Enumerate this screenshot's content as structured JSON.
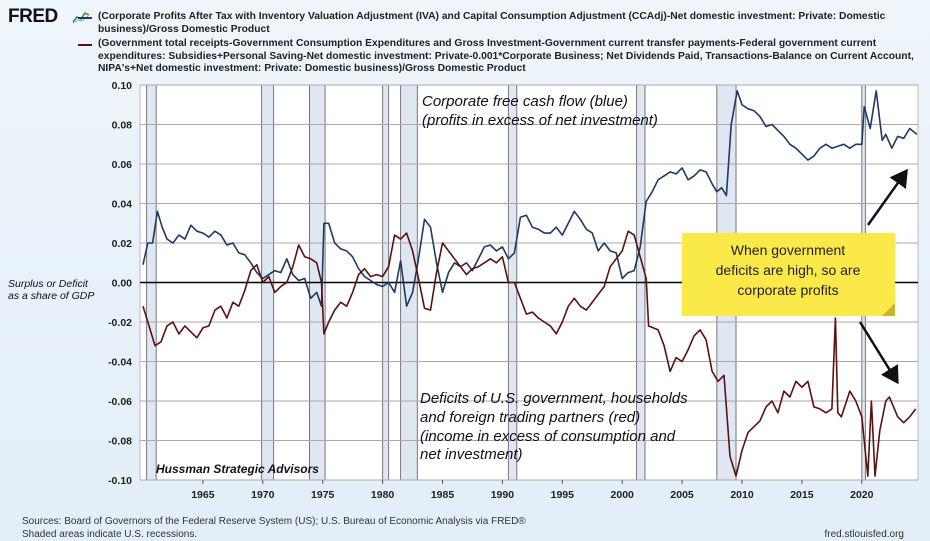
{
  "header": {
    "logo": "FRED",
    "series": [
      {
        "label": "(Corporate Profits After Tax with Inventory Valuation Adjustment (IVA) and Capital Consumption Adjustment (CCAdj)-Net domestic investment: Private: Domestic business)/Gross Domestic Product",
        "color": "#1f3864"
      },
      {
        "label": "(Government total receipts-Government Consumption Expenditures and Gross Investment-Government current transfer payments-Federal government current expenditures: Subsidies+Personal Saving-Net domestic investment: Private-0.001*Corporate Business; Net Dividends Paid, Transactions-Balance on Current Account, NIPA's+Net domestic investment: Private: Domestic business)/Gross Domestic Product",
        "color": "#5c1010"
      }
    ]
  },
  "footer": {
    "sources": "Sources: Board of Governors of the Federal Reserve System (US); U.S. Bureau of Economic Analysis via FRED®",
    "shaded_note": "Shaded areas indicate U.S. recessions.",
    "site": "fred.stlouisfed.org"
  },
  "chart_data": {
    "type": "line",
    "ylabel": [
      "Surplus or Deficit",
      "as a share of GDP"
    ],
    "xlim": [
      1960,
      2024.7
    ],
    "ylim": [
      -0.1,
      0.1
    ],
    "x_ticks": [
      "1965",
      "1970",
      "1975",
      "1980",
      "1985",
      "1990",
      "1995",
      "2000",
      "2005",
      "2010",
      "2015",
      "2020"
    ],
    "y_ticks": [
      "0.10",
      "0.08",
      "0.06",
      "0.04",
      "0.02",
      "0.00",
      "-0.02",
      "-0.04",
      "-0.06",
      "-0.08",
      "-0.10"
    ],
    "grid": "horizontal",
    "recessions": [
      [
        1960.3,
        1961.1
      ],
      [
        1969.9,
        1970.9
      ],
      [
        1973.9,
        1975.2
      ],
      [
        1980.0,
        1980.5
      ],
      [
        1981.5,
        1982.9
      ],
      [
        1990.5,
        1991.2
      ],
      [
        2001.2,
        2001.9
      ],
      [
        2007.9,
        2009.5
      ],
      [
        2020.0,
        2020.3
      ]
    ],
    "annotations": {
      "blue": [
        "Corporate free cash flow (blue)",
        "(profits in excess of net investment)"
      ],
      "red": [
        "Deficits of U.S. government, households",
        "and foreign trading partners (red)",
        "(income in excess of consumption and",
        "net investment)"
      ],
      "note": [
        "When government",
        "deficits are high, so are",
        "corporate profits"
      ],
      "credit": "Hussman Strategic Advisors"
    },
    "note_color": "#fbe94a",
    "series": [
      {
        "color": "#1f3864",
        "points": [
          [
            1960,
            0.009
          ],
          [
            1960.4,
            0.02
          ],
          [
            1960.8,
            0.02
          ],
          [
            1961.2,
            0.036
          ],
          [
            1961.6,
            0.028
          ],
          [
            1962,
            0.022
          ],
          [
            1962.5,
            0.02
          ],
          [
            1963,
            0.024
          ],
          [
            1963.5,
            0.022
          ],
          [
            1964,
            0.029
          ],
          [
            1964.5,
            0.026
          ],
          [
            1965,
            0.025
          ],
          [
            1965.5,
            0.023
          ],
          [
            1966,
            0.026
          ],
          [
            1966.5,
            0.024
          ],
          [
            1967,
            0.019
          ],
          [
            1967.5,
            0.02
          ],
          [
            1968,
            0.015
          ],
          [
            1968.5,
            0.014
          ],
          [
            1969,
            0.01
          ],
          [
            1969.5,
            0.005
          ],
          [
            1970,
            0.002
          ],
          [
            1970.5,
            0.004
          ],
          [
            1971,
            0.006
          ],
          [
            1971.5,
            0.005
          ],
          [
            1972,
            0.012
          ],
          [
            1972.5,
            0.004
          ],
          [
            1973,
            0.001
          ],
          [
            1973.5,
            0.002
          ],
          [
            1974,
            -0.008
          ],
          [
            1974.5,
            -0.005
          ],
          [
            1974.9,
            -0.012
          ],
          [
            1975.1,
            0.03
          ],
          [
            1975.5,
            0.03
          ],
          [
            1976,
            0.02
          ],
          [
            1976.5,
            0.017
          ],
          [
            1977,
            0.016
          ],
          [
            1977.5,
            0.013
          ],
          [
            1978,
            0.007
          ],
          [
            1978.5,
            0.003
          ],
          [
            1979,
            0.001
          ],
          [
            1979.5,
            -0.001
          ],
          [
            1980,
            -0.002
          ],
          [
            1980.5,
            0.0
          ],
          [
            1981,
            -0.005
          ],
          [
            1981.5,
            0.011
          ],
          [
            1982,
            -0.012
          ],
          [
            1982.5,
            -0.005
          ],
          [
            1983,
            0.012
          ],
          [
            1983.5,
            0.032
          ],
          [
            1984,
            0.028
          ],
          [
            1984.5,
            0.01
          ],
          [
            1985,
            -0.005
          ],
          [
            1985.5,
            0.005
          ],
          [
            1986,
            0.01
          ],
          [
            1986.5,
            0.008
          ],
          [
            1987,
            0.01
          ],
          [
            1987.5,
            0.006
          ],
          [
            1988,
            0.012
          ],
          [
            1988.5,
            0.018
          ],
          [
            1989,
            0.019
          ],
          [
            1989.5,
            0.016
          ],
          [
            1990,
            0.018
          ],
          [
            1990.5,
            0.012
          ],
          [
            1991,
            0.015
          ],
          [
            1991.5,
            0.033
          ],
          [
            1992,
            0.034
          ],
          [
            1992.5,
            0.028
          ],
          [
            1993,
            0.027
          ],
          [
            1993.5,
            0.025
          ],
          [
            1994,
            0.025
          ],
          [
            1994.5,
            0.028
          ],
          [
            1995,
            0.024
          ],
          [
            1995.5,
            0.03
          ],
          [
            1996,
            0.036
          ],
          [
            1996.5,
            0.032
          ],
          [
            1997,
            0.027
          ],
          [
            1997.5,
            0.025
          ],
          [
            1998,
            0.016
          ],
          [
            1998.5,
            0.02
          ],
          [
            1999,
            0.016
          ],
          [
            1999.5,
            0.015
          ],
          [
            2000,
            0.002
          ],
          [
            2000.5,
            0.005
          ],
          [
            2001,
            0.006
          ],
          [
            2001.5,
            0.018
          ],
          [
            2002,
            0.041
          ],
          [
            2002.5,
            0.046
          ],
          [
            2003,
            0.052
          ],
          [
            2003.5,
            0.054
          ],
          [
            2004,
            0.056
          ],
          [
            2004.5,
            0.055
          ],
          [
            2005,
            0.058
          ],
          [
            2005.5,
            0.052
          ],
          [
            2006,
            0.054
          ],
          [
            2006.5,
            0.057
          ],
          [
            2007,
            0.056
          ],
          [
            2007.5,
            0.05
          ],
          [
            2007.9,
            0.046
          ],
          [
            2008.3,
            0.048
          ],
          [
            2008.7,
            0.044
          ],
          [
            2009.1,
            0.08
          ],
          [
            2009.6,
            0.097
          ],
          [
            2010,
            0.09
          ],
          [
            2010.5,
            0.088
          ],
          [
            2011,
            0.087
          ],
          [
            2011.5,
            0.084
          ],
          [
            2012,
            0.079
          ],
          [
            2012.5,
            0.08
          ],
          [
            2013,
            0.077
          ],
          [
            2013.5,
            0.074
          ],
          [
            2014,
            0.07
          ],
          [
            2014.5,
            0.068
          ],
          [
            2015,
            0.065
          ],
          [
            2015.5,
            0.062
          ],
          [
            2016,
            0.064
          ],
          [
            2016.5,
            0.068
          ],
          [
            2017,
            0.07
          ],
          [
            2017.5,
            0.068
          ],
          [
            2018,
            0.069
          ],
          [
            2018.5,
            0.07
          ],
          [
            2019,
            0.068
          ],
          [
            2019.5,
            0.07
          ],
          [
            2020,
            0.07
          ],
          [
            2020.2,
            0.089
          ],
          [
            2020.7,
            0.078
          ],
          [
            2021.2,
            0.097
          ],
          [
            2021.7,
            0.072
          ],
          [
            2022,
            0.075
          ],
          [
            2022.5,
            0.068
          ],
          [
            2023,
            0.074
          ],
          [
            2023.5,
            0.073
          ],
          [
            2024,
            0.078
          ],
          [
            2024.6,
            0.075
          ]
        ]
      },
      {
        "color": "#5c1010",
        "points": [
          [
            1960,
            -0.012
          ],
          [
            1960.5,
            -0.022
          ],
          [
            1961,
            -0.032
          ],
          [
            1961.5,
            -0.03
          ],
          [
            1962,
            -0.022
          ],
          [
            1962.5,
            -0.02
          ],
          [
            1963,
            -0.026
          ],
          [
            1963.5,
            -0.022
          ],
          [
            1964,
            -0.025
          ],
          [
            1964.5,
            -0.028
          ],
          [
            1965,
            -0.023
          ],
          [
            1965.5,
            -0.022
          ],
          [
            1966,
            -0.014
          ],
          [
            1966.5,
            -0.012
          ],
          [
            1967,
            -0.018
          ],
          [
            1967.5,
            -0.01
          ],
          [
            1968,
            -0.012
          ],
          [
            1968.5,
            -0.004
          ],
          [
            1969,
            0.006
          ],
          [
            1969.5,
            0.009
          ],
          [
            1970,
            0.0
          ],
          [
            1970.5,
            0.003
          ],
          [
            1971,
            -0.005
          ],
          [
            1971.5,
            -0.002
          ],
          [
            1972,
            0.0
          ],
          [
            1972.5,
            0.008
          ],
          [
            1973,
            0.019
          ],
          [
            1973.5,
            0.013
          ],
          [
            1974,
            0.012
          ],
          [
            1974.5,
            0.01
          ],
          [
            1974.9,
            0.0
          ],
          [
            1975.1,
            -0.026
          ],
          [
            1975.5,
            -0.02
          ],
          [
            1976,
            -0.014
          ],
          [
            1976.5,
            -0.01
          ],
          [
            1977,
            -0.012
          ],
          [
            1977.5,
            -0.005
          ],
          [
            1978,
            0.004
          ],
          [
            1978.5,
            0.007
          ],
          [
            1979,
            0.003
          ],
          [
            1979.5,
            0.004
          ],
          [
            1980,
            0.003
          ],
          [
            1980.5,
            0.008
          ],
          [
            1981,
            0.024
          ],
          [
            1981.5,
            0.022
          ],
          [
            1982,
            0.025
          ],
          [
            1982.5,
            0.016
          ],
          [
            1983,
            0.002
          ],
          [
            1983.5,
            -0.013
          ],
          [
            1984,
            -0.014
          ],
          [
            1984.5,
            0.005
          ],
          [
            1985,
            0.02
          ],
          [
            1985.5,
            0.016
          ],
          [
            1986,
            0.012
          ],
          [
            1986.5,
            0.008
          ],
          [
            1987,
            0.004
          ],
          [
            1987.5,
            0.007
          ],
          [
            1988,
            0.008
          ],
          [
            1988.5,
            0.01
          ],
          [
            1989,
            0.012
          ],
          [
            1989.5,
            0.01
          ],
          [
            1990,
            0.013
          ],
          [
            1990.5,
            0.0
          ],
          [
            1991,
            0.0
          ],
          [
            1991.5,
            -0.008
          ],
          [
            1992,
            -0.016
          ],
          [
            1992.5,
            -0.015
          ],
          [
            1993,
            -0.018
          ],
          [
            1993.5,
            -0.02
          ],
          [
            1994,
            -0.022
          ],
          [
            1994.5,
            -0.026
          ],
          [
            1995,
            -0.02
          ],
          [
            1995.5,
            -0.012
          ],
          [
            1996,
            -0.008
          ],
          [
            1996.5,
            -0.012
          ],
          [
            1997,
            -0.014
          ],
          [
            1997.5,
            -0.01
          ],
          [
            1998,
            -0.006
          ],
          [
            1998.5,
            -0.002
          ],
          [
            1999,
            0.008
          ],
          [
            1999.5,
            0.012
          ],
          [
            2000,
            0.016
          ],
          [
            2000.5,
            0.026
          ],
          [
            2001,
            0.024
          ],
          [
            2001.5,
            0.013
          ],
          [
            2002,
            0.002
          ],
          [
            2002.2,
            -0.022
          ],
          [
            2003,
            -0.024
          ],
          [
            2003.5,
            -0.032
          ],
          [
            2004,
            -0.045
          ],
          [
            2004.5,
            -0.038
          ],
          [
            2005,
            -0.04
          ],
          [
            2005.5,
            -0.034
          ],
          [
            2006,
            -0.027
          ],
          [
            2006.5,
            -0.024
          ],
          [
            2007,
            -0.029
          ],
          [
            2007.5,
            -0.045
          ],
          [
            2008,
            -0.05
          ],
          [
            2008.5,
            -0.047
          ],
          [
            2009,
            -0.088
          ],
          [
            2009.5,
            -0.098
          ],
          [
            2010,
            -0.085
          ],
          [
            2010.5,
            -0.076
          ],
          [
            2011,
            -0.073
          ],
          [
            2011.5,
            -0.07
          ],
          [
            2012,
            -0.063
          ],
          [
            2012.5,
            -0.06
          ],
          [
            2013,
            -0.066
          ],
          [
            2013.5,
            -0.055
          ],
          [
            2014,
            -0.058
          ],
          [
            2014.5,
            -0.05
          ],
          [
            2015,
            -0.053
          ],
          [
            2015.5,
            -0.05
          ],
          [
            2016,
            -0.063
          ],
          [
            2016.5,
            -0.064
          ],
          [
            2017,
            -0.066
          ],
          [
            2017.5,
            -0.064
          ],
          [
            2017.8,
            -0.018
          ],
          [
            2018.0,
            -0.066
          ],
          [
            2018.3,
            -0.068
          ],
          [
            2019,
            -0.055
          ],
          [
            2019.5,
            -0.06
          ],
          [
            2020,
            -0.068
          ],
          [
            2020.5,
            -0.098
          ],
          [
            2020.8,
            -0.06
          ],
          [
            2021.1,
            -0.098
          ],
          [
            2021.5,
            -0.075
          ],
          [
            2022,
            -0.06
          ],
          [
            2022.3,
            -0.058
          ],
          [
            2023,
            -0.068
          ],
          [
            2023.5,
            -0.071
          ],
          [
            2024,
            -0.068
          ],
          [
            2024.5,
            -0.064
          ]
        ]
      }
    ]
  }
}
